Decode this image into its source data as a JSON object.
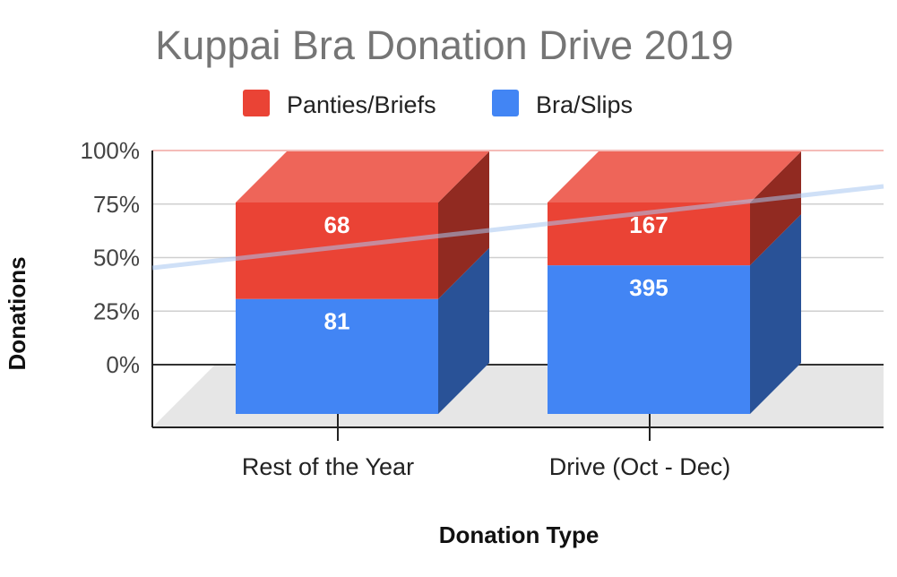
{
  "chart_data": {
    "type": "bar",
    "stacking": "percent",
    "three_d": true,
    "title": "Kuppai Bra Donation Drive 2019",
    "xlabel": "Donation Type",
    "ylabel": "Donations",
    "categories": [
      "Rest of the Year",
      "Drive (Oct - Dec)"
    ],
    "series": [
      {
        "name": "Bra/Slips",
        "values": [
          81,
          395
        ],
        "color": "#4285F4"
      },
      {
        "name": "Panties/Briefs",
        "values": [
          68,
          167
        ],
        "color": "#EA4335"
      }
    ],
    "y_ticks": [
      "0%",
      "25%",
      "50%",
      "75%",
      "100%"
    ],
    "ylim": [
      0,
      100
    ],
    "legend_position": "top",
    "grid": true,
    "trendline": {
      "color": "#A8C7F0"
    }
  }
}
